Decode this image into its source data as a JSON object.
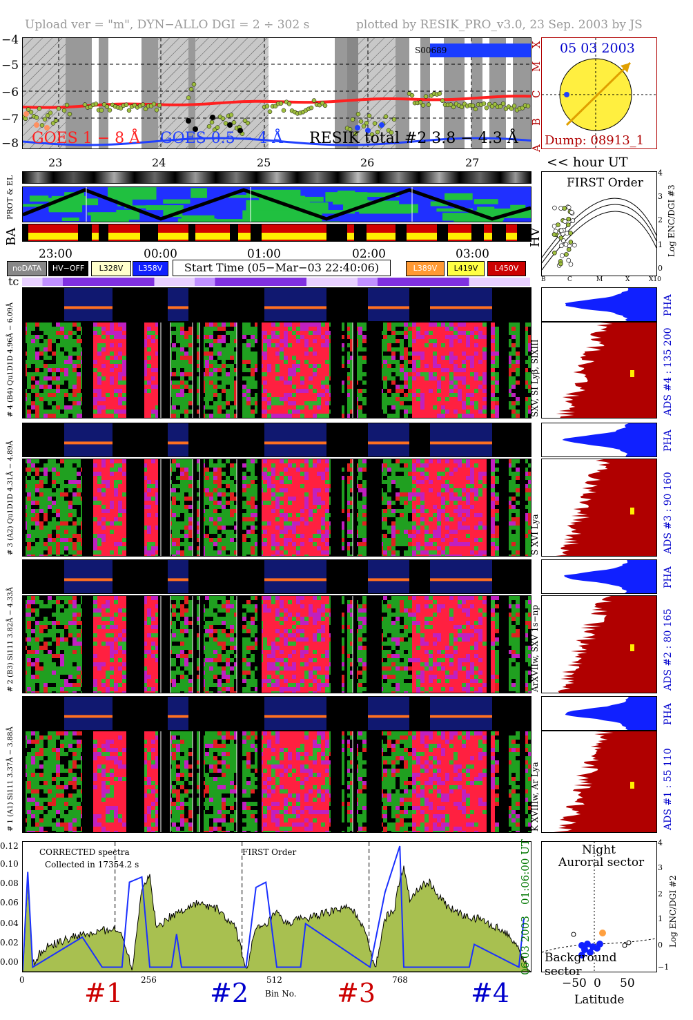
{
  "header": {
    "left": "Upload ver = \"m\", DYN−ALLO DGI =   2 ÷ 302 s",
    "right": "plotted by RESIK_PRO_v3.0, 23 Sep. 2003 by JS"
  },
  "goes": {
    "y_ticks": [
      "−4",
      "−5",
      "−6",
      "−7",
      "−8"
    ],
    "right_letters": [
      "X",
      "M",
      "C",
      "B",
      "A"
    ],
    "label1": "GOES 1 − 8 Å",
    "label2": "GOES 0.5 − 4 Å",
    "label3": "RESIK total #2  3.8 − 4.3 Å",
    "tag": "S00689",
    "colors": {
      "goes_long": "#ff2020",
      "goes_short": "#2040ff",
      "resik": "#9fbf3f"
    }
  },
  "sun": {
    "date": "05 03 2003",
    "dump": "Dump: 08913_1",
    "colors": {
      "disk": "#ffef40",
      "arrow": "#e0a000",
      "frame": "#b00000"
    }
  },
  "orbit": {
    "day_ticks": [
      "23",
      "24",
      "25",
      "26",
      "27"
    ],
    "hour_label": "<< hour UT",
    "row_labels": [
      "PROT & EL",
      "BA",
      "HV"
    ],
    "time_ticks": [
      "23:00",
      "00:00",
      "01:00",
      "02:00",
      "03:00"
    ]
  },
  "first_order": {
    "title": "FIRST Order",
    "y_label": "Log ENC/DGI #3",
    "y_ticks": [
      "4",
      "3",
      "2",
      "1",
      "0"
    ],
    "x_ticks": [
      "B",
      "C",
      "M",
      "X",
      "X10"
    ]
  },
  "legend": {
    "items": [
      "noDATA",
      "HV−OFF",
      "L328V",
      "L358V"
    ],
    "start_time": "Start Time (05−Mar−03 22:40:06)",
    "items2": [
      "L389V",
      "L419V",
      "L450V"
    ],
    "tc": "tc"
  },
  "channels": [
    {
      "pha_label": "# 4 (B4) Qu1D1D 4.96Å − 6.09Å",
      "lines": "SXV, SI Lyβ, SIXIII",
      "ads": "ADS #4 :  135 200",
      "pha": "PHA"
    },
    {
      "pha_label": "# 3 (A2) Qu1D1D 4.31Å − 4.89Å",
      "lines": "S XVI Lya",
      "ads": "ADS #3 :   90 160",
      "pha": "PHA"
    },
    {
      "pha_label": "# 2 (B3) Si111  3.82Å − 4.33Å",
      "lines": "ArXVIIw, SXV 1s−np",
      "ads": "ADS #2 :   80 165",
      "pha": "PHA"
    },
    {
      "pha_label": "# 1 (A1) Si111  3.37Å − 3.88Å",
      "lines": "K XVIIIw, Ar Lya",
      "ads": "ADS #1 :   55 110",
      "pha": "PHA"
    }
  ],
  "spectrum": {
    "y_ticks": [
      "0.12",
      "0.10",
      "0.08",
      "0.06",
      "0.04",
      "0.02",
      "0.00"
    ],
    "x_ticks": [
      "0",
      "256",
      "512",
      "768"
    ],
    "x_label": "Bin No.",
    "note1": "CORRECTED spectra",
    "note2": "Collected in 17354.2 s",
    "order": "FIRST Order",
    "ut": "01:06:00 UT",
    "date": "06 03 2003",
    "sections": [
      "#1",
      "#2",
      "#3",
      "#4"
    ],
    "section_colors": [
      "#cc0000",
      "#0000cc",
      "#cc0000",
      "#0000cc"
    ]
  },
  "latitude": {
    "title1": "Night",
    "title2": "Auroral sector",
    "bottom": "Background sector",
    "x_ticks": [
      "−50",
      "0",
      "50"
    ],
    "x_label": "Latitude",
    "y_label": "Log ENC/DGI #2",
    "y_ticks": [
      "4",
      "3",
      "2",
      "1",
      "0",
      "−1"
    ]
  },
  "chart_data": {
    "type": "line",
    "title": "",
    "xlabel": "Bin No.",
    "ylabel": "",
    "xlim": [
      0,
      1024
    ],
    "ylim": [
      0,
      0.12
    ],
    "series": [
      {
        "name": "",
        "x": [
          0,
          10,
          20,
          40,
          60,
          80,
          100,
          120,
          140,
          160,
          180,
          200,
          210,
          220,
          240,
          256,
          270,
          290,
          310,
          330,
          350,
          370,
          390,
          410,
          430,
          450,
          470,
          490,
          500,
          512,
          530,
          550,
          570,
          590,
          610,
          630,
          650,
          670,
          690,
          710,
          730,
          750,
          760,
          768,
          780,
          800,
          820,
          840,
          860,
          880,
          900,
          920,
          940,
          960,
          980,
          1000,
          1010,
          1020
        ],
        "values": [
          0.0,
          0.09,
          0.005,
          0.02,
          0.025,
          0.028,
          0.032,
          0.034,
          0.035,
          0.038,
          0.04,
          0.035,
          0.02,
          0.0,
          0.08,
          0.09,
          0.04,
          0.05,
          0.055,
          0.06,
          0.065,
          0.062,
          0.06,
          0.05,
          0.04,
          0.0,
          0.04,
          0.042,
          0.05,
          0.055,
          0.045,
          0.048,
          0.05,
          0.052,
          0.055,
          0.058,
          0.06,
          0.055,
          0.04,
          0.0,
          0.05,
          0.06,
          0.09,
          0.1,
          0.07,
          0.08,
          0.085,
          0.07,
          0.06,
          0.055,
          0.05,
          0.05,
          0.045,
          0.04,
          0.035,
          0.02,
          0.01,
          0.0
        ]
      },
      {
        "name": "",
        "x": [
          0,
          10,
          20,
          120,
          160,
          200,
          215,
          240,
          256,
          300,
          310,
          320,
          450,
          470,
          490,
          512,
          560,
          570,
          700,
          730,
          760,
          768,
          900,
          910,
          1000,
          1010
        ],
        "values": [
          0.0,
          0.095,
          0.003,
          0.032,
          0.003,
          0.003,
          0.085,
          0.09,
          0.003,
          0.003,
          0.035,
          0.003,
          0.003,
          0.08,
          0.085,
          0.003,
          0.003,
          0.045,
          0.003,
          0.075,
          0.12,
          0.003,
          0.003,
          0.025,
          0.003,
          0.05
        ]
      }
    ]
  }
}
